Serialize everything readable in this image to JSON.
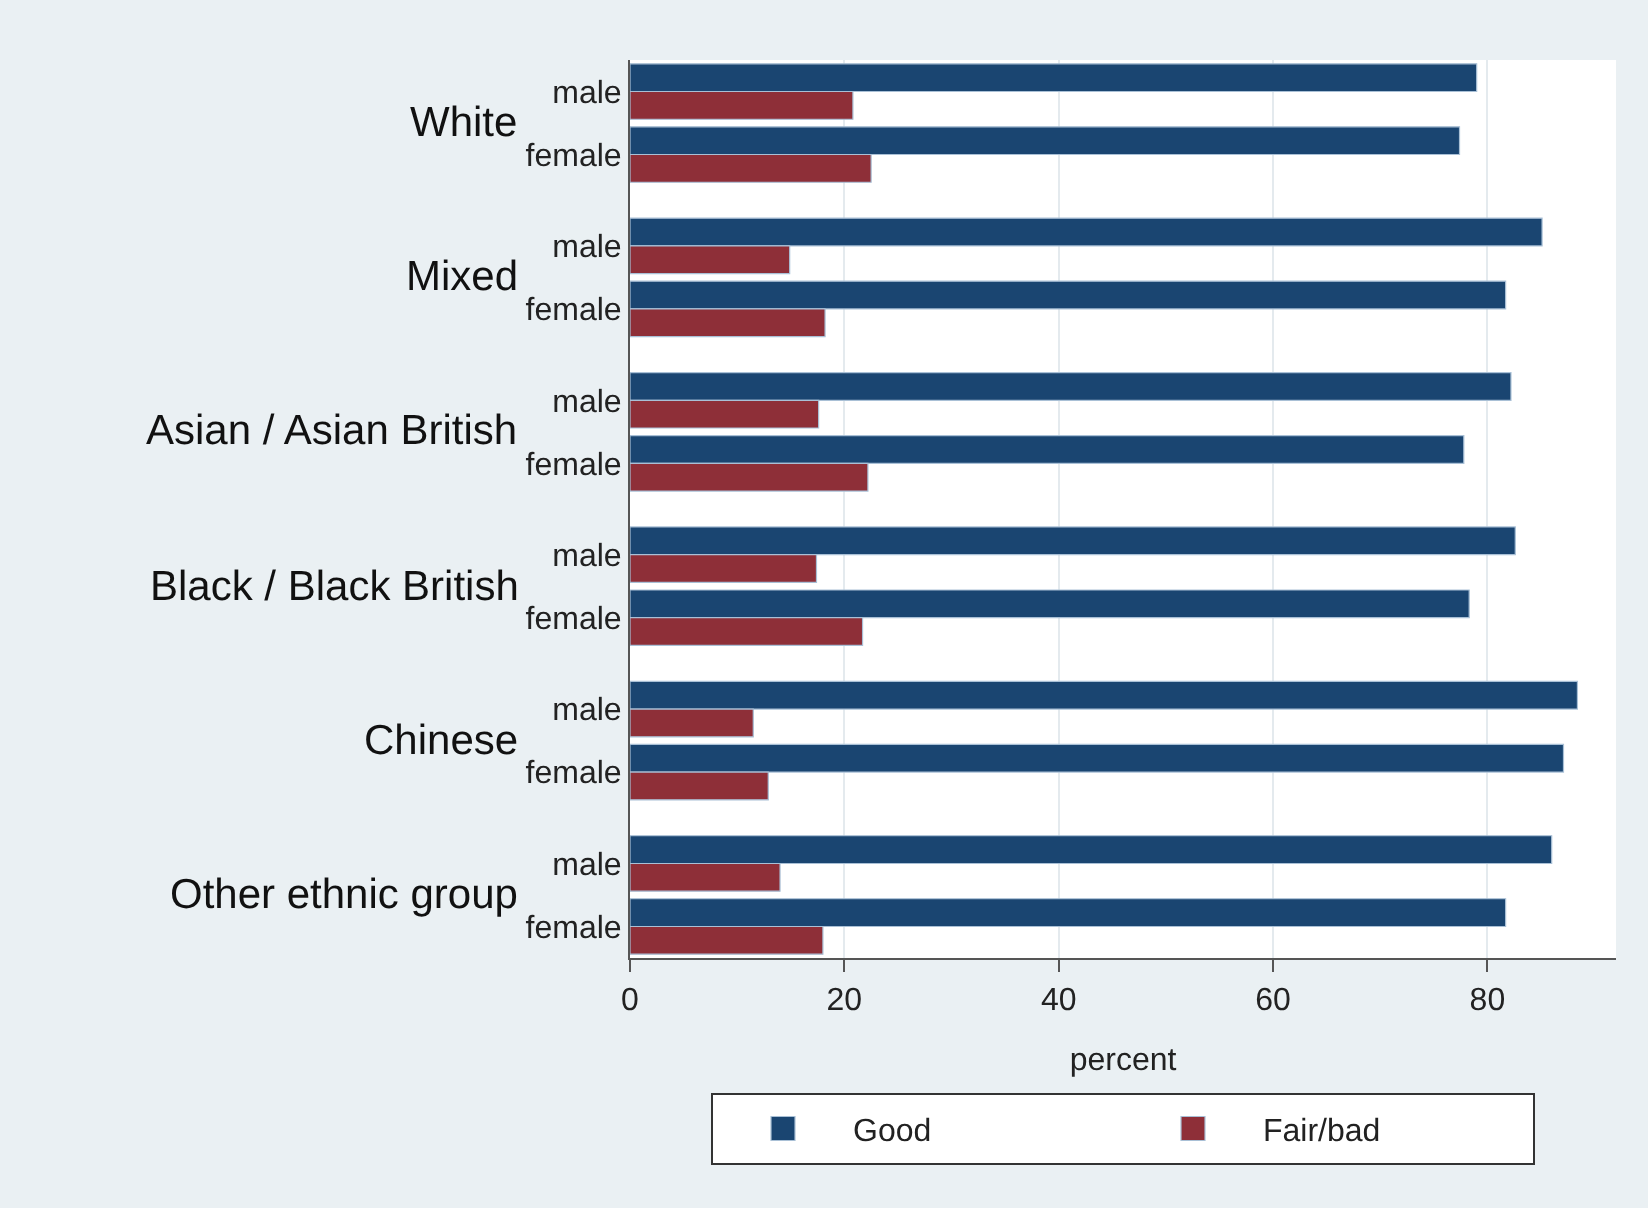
{
  "chart_data": {
    "type": "bar",
    "orientation": "horizontal",
    "categories": [
      "male",
      "female",
      "male",
      "female",
      "male",
      "female",
      "male",
      "female",
      "male",
      "female",
      "male",
      "female"
    ],
    "series": [
      {
        "name": "Good",
        "color": "#1a4571",
        "values": [
          79.0,
          77.4,
          85.1,
          81.7,
          82.2,
          77.8,
          82.6,
          78.3,
          88.4,
          87.1,
          86.0,
          81.7
        ]
      },
      {
        "name": "Fair/bad",
        "color": "#8e2f38",
        "values": [
          20.8,
          22.5,
          14.9,
          18.2,
          17.6,
          22.2,
          17.4,
          21.7,
          11.5,
          12.9,
          14.0,
          18.0
        ]
      }
    ],
    "annotations": [
      "White",
      "Mixed",
      "Asian / Asian British",
      "Black / Black British",
      "Chinese",
      "Other ethnic group"
    ],
    "xlabel": "percent",
    "xlim": [
      0,
      92
    ],
    "xticks": [
      0,
      20,
      40,
      60,
      80
    ],
    "grid": "x",
    "legend": "bottom"
  }
}
